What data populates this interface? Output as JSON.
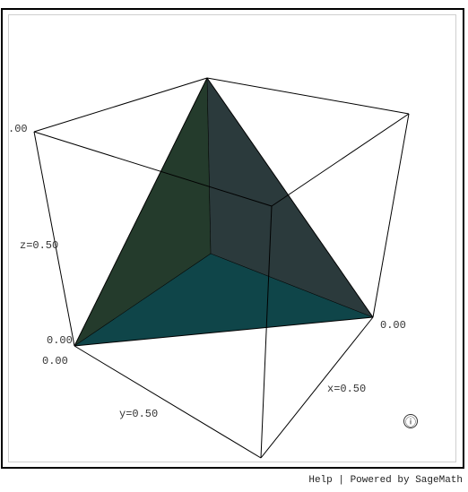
{
  "viewer": {
    "labels": {
      "z_top": ".00",
      "z_mid": "z=0.50",
      "z_zero": "0.00",
      "y_zero": "0.00",
      "y_mid": "y=0.50",
      "x_mid": "x=0.50",
      "x_zero": "0.00"
    },
    "info_icon": "ⓘ",
    "colors": {
      "face_left": "#243b2c",
      "face_right": "#2b3a3c",
      "face_bottom": "#0f4549",
      "edges": "#000000"
    }
  },
  "footer": {
    "help": "Help",
    "separator": "|",
    "powered_by": "Powered by SageMath"
  }
}
